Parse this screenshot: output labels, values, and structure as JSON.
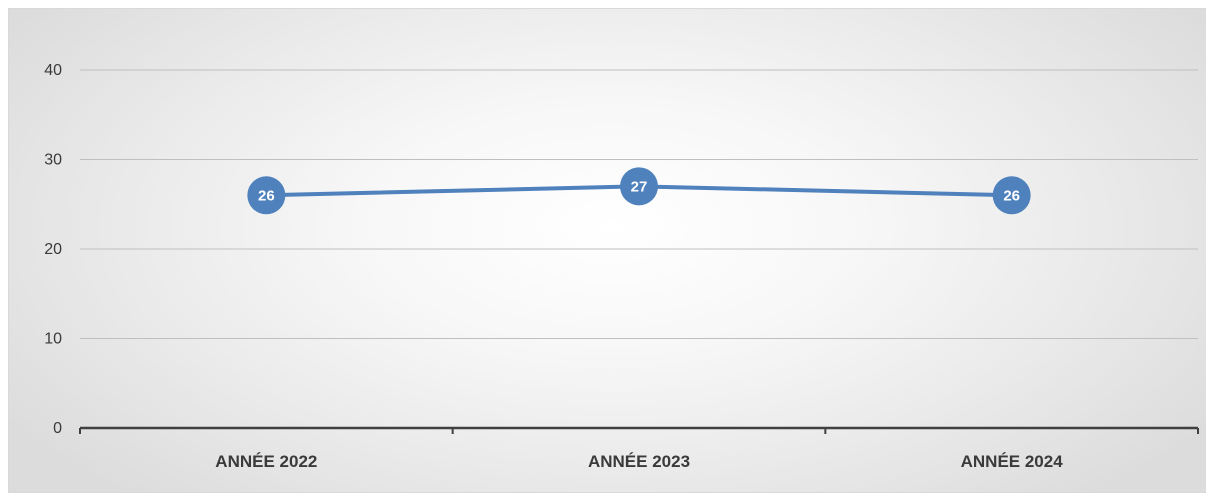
{
  "chart_data": {
    "type": "line",
    "categories": [
      "ANNÉE 2022",
      "ANNÉE 2023",
      "ANNÉE 2024"
    ],
    "series": [
      {
        "values": [
          26,
          27,
          26
        ]
      }
    ],
    "ylim": [
      0,
      40
    ],
    "yticks": [
      0,
      10,
      20,
      30,
      40
    ],
    "grid": true,
    "legend": "none",
    "data_labels": true,
    "colors": {
      "line": "#4f81bd",
      "marker": "#4f81bd",
      "grid": "#bfbfbf",
      "axis": "#404040"
    }
  }
}
